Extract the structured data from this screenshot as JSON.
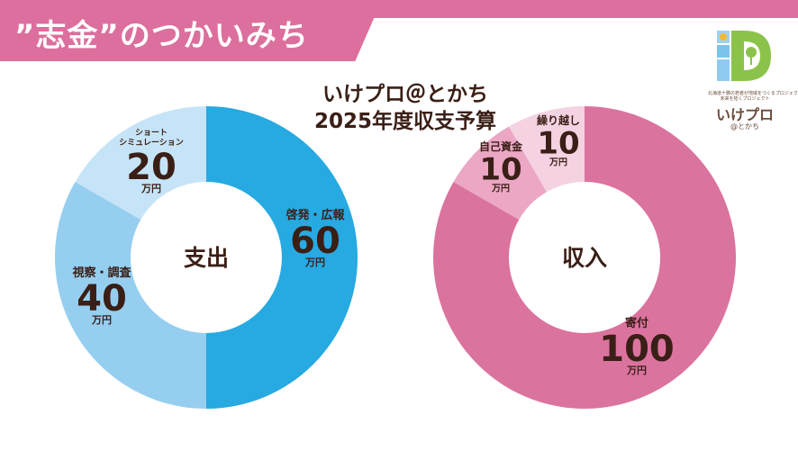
{
  "header": {
    "title": "”志金”のつかいみち",
    "subtitle_line1": "いけプロ＠とかち",
    "subtitle_line2": "2025年度収支予算"
  },
  "logo": {
    "tagline_line1": "北海道十勝の若者が地域をつくるプロジェクト",
    "tagline_line2": "未来を拓くプロジェクト",
    "name": "いけプロ",
    "sub": "@とかち",
    "icon_name": "ikepuro-logo-icon"
  },
  "colors": {
    "expense_1": "#27a9e1",
    "expense_2": "#96cef0",
    "expense_3": "#c6e4f7",
    "income_1": "#db739f",
    "income_2": "#eba7c4",
    "income_3": "#f5d2e1",
    "header": "#dc6f9d",
    "label_text": "#3a1f16"
  },
  "chart_data": [
    {
      "type": "pie",
      "title": "",
      "center_label": "支出",
      "unit": "万円",
      "categories": [
        "啓発・広報",
        "視察・調査",
        "ショートシミュレーション"
      ],
      "values": [
        60,
        40,
        20
      ]
    },
    {
      "type": "pie",
      "title": "",
      "center_label": "収入",
      "unit": "万円",
      "categories": [
        "寄付",
        "自己資金",
        "繰り越し"
      ],
      "values": [
        100,
        10,
        10
      ]
    }
  ]
}
